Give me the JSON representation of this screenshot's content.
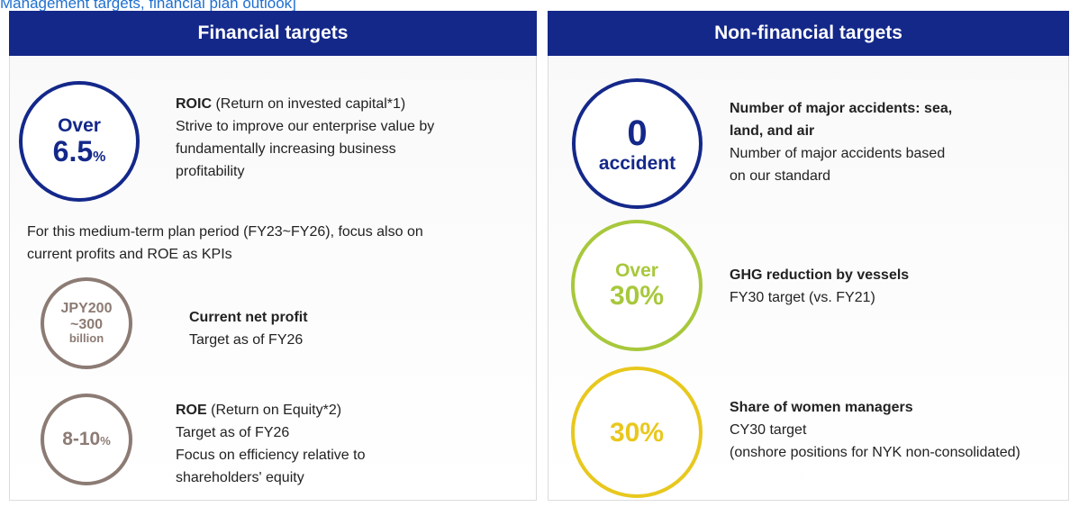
{
  "header": {
    "title": "Management targets, financial plan outlook]"
  },
  "financial": {
    "title": "Financial targets",
    "roic": {
      "circle": [
        "Over",
        "6.5",
        "%"
      ],
      "name": "ROIC",
      "name_note": " (Return on invested capital*1)",
      "lines": [
        "Strive to improve our enterprise value by",
        "fundamentally increasing business",
        "profitability"
      ]
    },
    "note": [
      "For this medium-term plan period (FY23~FY26), focus also on",
      "current profits and ROE as KPIs"
    ],
    "profit": {
      "circle": [
        "JPY200",
        "~300",
        "billion"
      ],
      "name": "Current net profit",
      "lines": [
        "Target as of FY26"
      ]
    },
    "roe": {
      "circle": [
        "8-10",
        "%"
      ],
      "name": "ROE",
      "name_note": " (Return on Equity*2)",
      "lines": [
        "Target as of FY26",
        "Focus on efficiency relative to",
        "shareholders' equity"
      ]
    }
  },
  "non_financial": {
    "title": "Non-financial targets",
    "accidents": {
      "circle": [
        "0",
        "accident"
      ],
      "name": [
        "Number of major accidents: sea,",
        "land, and air"
      ],
      "lines": [
        "Number of major accidents based",
        "on our standard"
      ]
    },
    "ghg": {
      "circle": [
        "Over",
        "30%"
      ],
      "name": "GHG reduction by vessels",
      "lines": [
        "FY30 target (vs. FY21)"
      ]
    },
    "women": {
      "circle": [
        "30%"
      ],
      "name": "Share of women managers",
      "lines": [
        "CY30 target",
        "(onshore positions for NYK non-consolidated)"
      ]
    }
  }
}
